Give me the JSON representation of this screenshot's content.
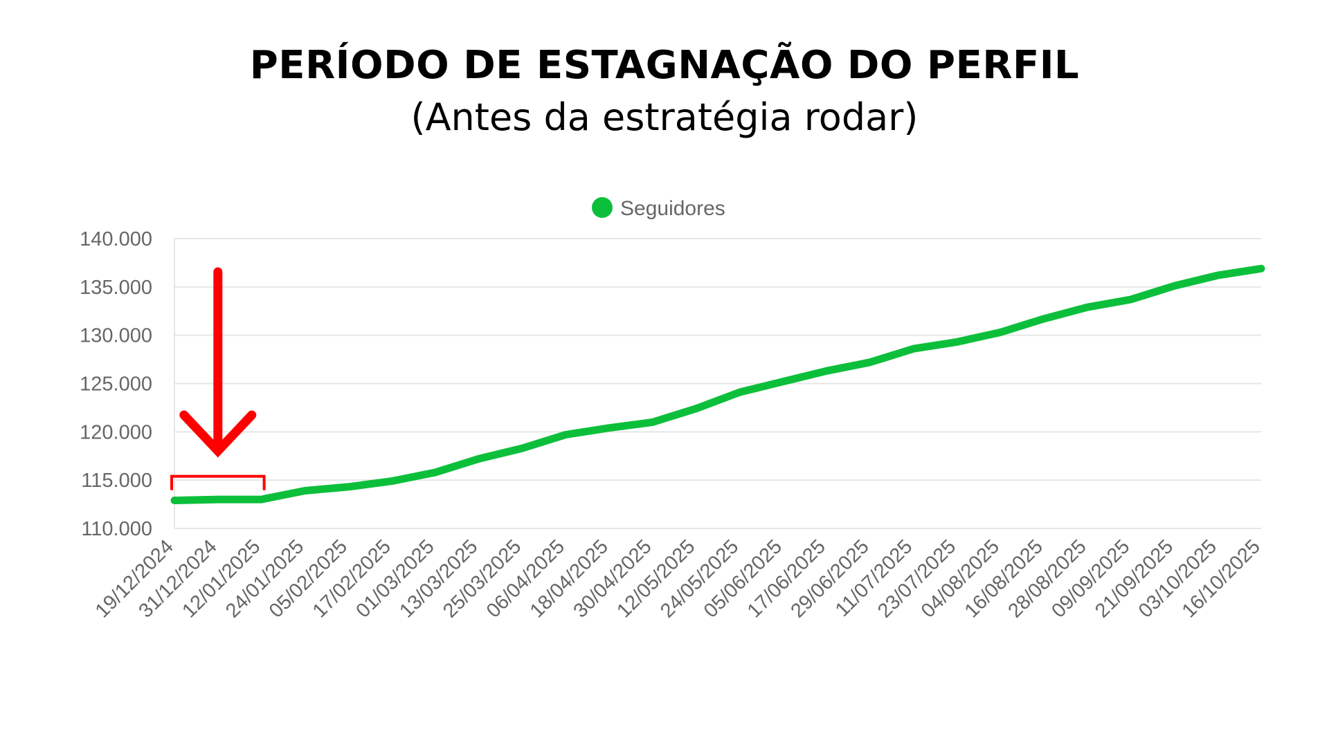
{
  "title": "PERÍODO DE ESTAGNAÇÃO DO PERFIL",
  "subtitle": "(Antes da estratégia rodar)",
  "colors": {
    "line": "#0cbf3b",
    "annotation": "#ff0000",
    "grid": "#e6e6e6",
    "tick_text": "#666666"
  },
  "chart_data": {
    "type": "line",
    "legend_position": "top-center",
    "grid": true,
    "ylim": [
      110000,
      140000
    ],
    "y_ticks": [
      {
        "value": 110000,
        "label": "110.000"
      },
      {
        "value": 115000,
        "label": "115.000"
      },
      {
        "value": 120000,
        "label": "120.000"
      },
      {
        "value": 125000,
        "label": "125.000"
      },
      {
        "value": 130000,
        "label": "130.000"
      },
      {
        "value": 135000,
        "label": "135.000"
      },
      {
        "value": 140000,
        "label": "140.000"
      }
    ],
    "categories": [
      "19/12/2024",
      "31/12/2024",
      "12/01/2025",
      "24/01/2025",
      "05/02/2025",
      "17/02/2025",
      "01/03/2025",
      "13/03/2025",
      "25/03/2025",
      "06/04/2025",
      "18/04/2025",
      "30/04/2025",
      "12/05/2025",
      "24/05/2025",
      "05/06/2025",
      "17/06/2025",
      "29/06/2025",
      "11/07/2025",
      "23/07/2025",
      "04/08/2025",
      "16/08/2025",
      "28/08/2025",
      "09/09/2025",
      "21/09/2025",
      "03/10/2025",
      "16/10/2025"
    ],
    "series": [
      {
        "name": "Seguidores",
        "values": [
          112900,
          113000,
          113000,
          113900,
          114300,
          114900,
          115800,
          117200,
          118300,
          119700,
          120400,
          121000,
          122400,
          124100,
          125200,
          126300,
          127200,
          128600,
          129300,
          130300,
          131700,
          132900,
          133700,
          135100,
          136200,
          136900
        ]
      }
    ],
    "annotations": [
      {
        "type": "arrow-down",
        "note": "stagnation period marker"
      },
      {
        "type": "bracket",
        "from_category": "19/12/2024",
        "to_category": "12/01/2025"
      }
    ]
  }
}
